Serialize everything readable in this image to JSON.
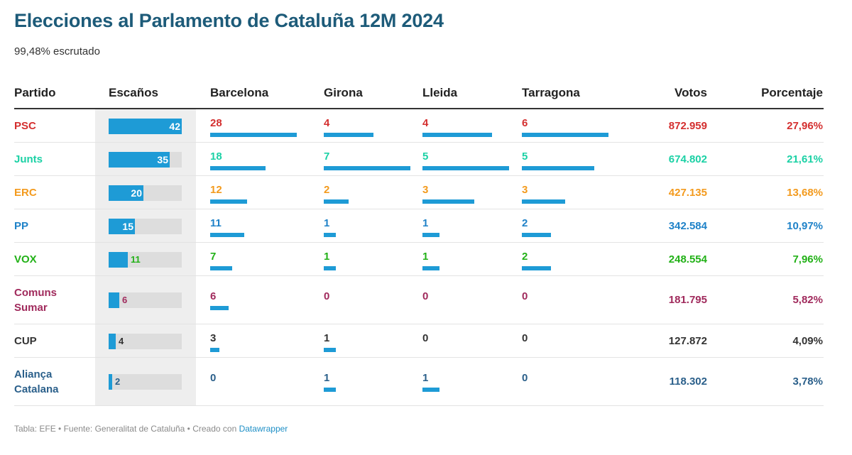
{
  "title": "Elecciones al Parlamento de Cataluña 12M 2024",
  "subtitle": "99,48% escrutado",
  "headers": {
    "partido": "Partido",
    "escanos": "Escaños",
    "barcelona": "Barcelona",
    "girona": "Girona",
    "lleida": "Lleida",
    "tarragona": "Tarragona",
    "votos": "Votos",
    "porcentaje": "Porcentaje"
  },
  "footer": {
    "text": "Tabla: EFE • Fuente: Generalitat de Cataluña • Creado con ",
    "link": "Datawrapper"
  },
  "colors": {
    "title": "#1d5b79",
    "bar": "#1e9bd6",
    "track": "#dddddd",
    "seat_column_bg": "#eeeeee"
  },
  "chart_data": {
    "type": "table",
    "seats_max": 42,
    "province_max": {
      "barcelona": 28,
      "girona": 7,
      "lleida": 5,
      "tarragona": 6
    },
    "rows": [
      {
        "party": "PSC",
        "color": "#d42f2f",
        "seats": 42,
        "barcelona": 28,
        "girona": 4,
        "lleida": 4,
        "tarragona": 6,
        "votes": "872.959",
        "pct": "27,96%"
      },
      {
        "party": "Junts",
        "color": "#1bd1a5",
        "seats": 35,
        "barcelona": 18,
        "girona": 7,
        "lleida": 5,
        "tarragona": 5,
        "votes": "674.802",
        "pct": "21,61%"
      },
      {
        "party": "ERC",
        "color": "#f39a1d",
        "seats": 20,
        "barcelona": 12,
        "girona": 2,
        "lleida": 3,
        "tarragona": 3,
        "votes": "427.135",
        "pct": "13,68%"
      },
      {
        "party": "PP",
        "color": "#1f82c8",
        "seats": 15,
        "barcelona": 11,
        "girona": 1,
        "lleida": 1,
        "tarragona": 2,
        "votes": "342.584",
        "pct": "10,97%"
      },
      {
        "party": "VOX",
        "color": "#22b117",
        "seats": 11,
        "barcelona": 7,
        "girona": 1,
        "lleida": 1,
        "tarragona": 2,
        "votes": "248.554",
        "pct": "7,96%"
      },
      {
        "party": "Comuns Sumar",
        "color": "#a02a5c",
        "seats": 6,
        "barcelona": 6,
        "girona": 0,
        "lleida": 0,
        "tarragona": 0,
        "votes": "181.795",
        "pct": "5,82%"
      },
      {
        "party": "CUP",
        "color": "#333333",
        "seats": 4,
        "barcelona": 3,
        "girona": 1,
        "lleida": 0,
        "tarragona": 0,
        "votes": "127.872",
        "pct": "4,09%"
      },
      {
        "party": "Aliança Catalana",
        "color": "#2a5f8a",
        "seats": 2,
        "barcelona": 0,
        "girona": 1,
        "lleida": 1,
        "tarragona": 0,
        "votes": "118.302",
        "pct": "3,78%"
      }
    ]
  }
}
